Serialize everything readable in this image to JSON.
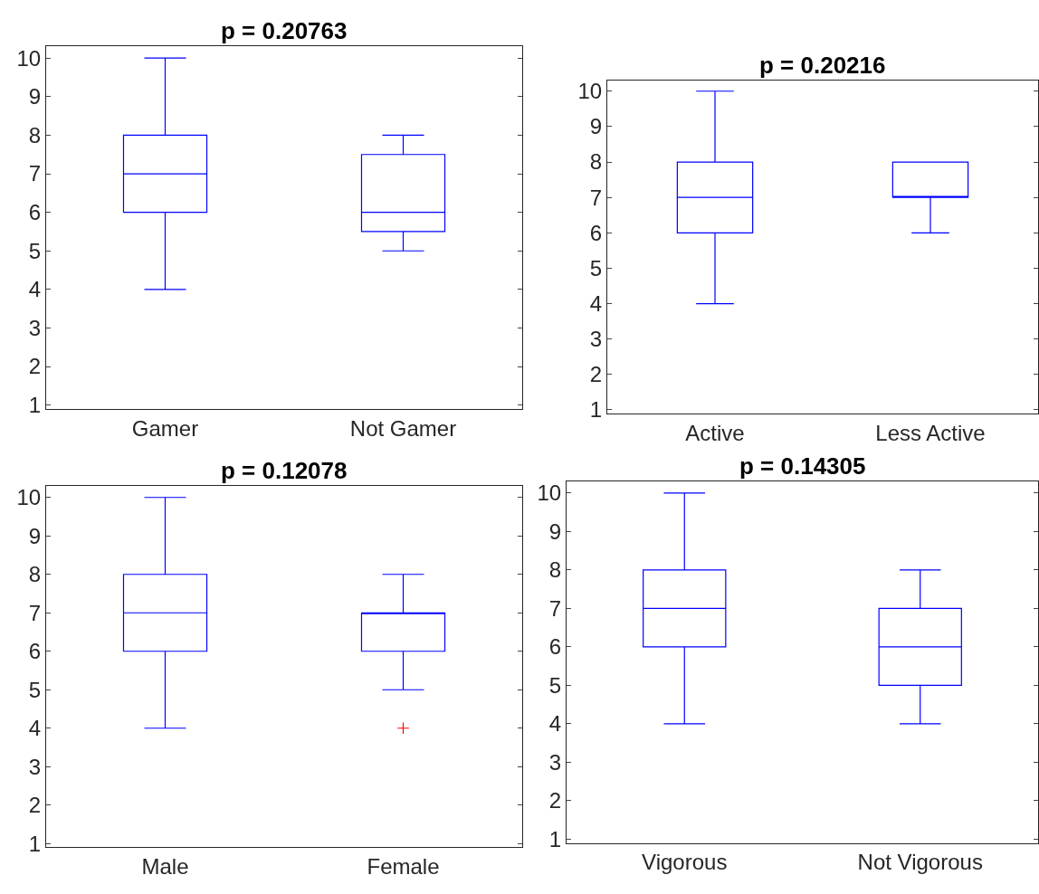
{
  "chart_data": [
    {
      "type": "box",
      "title": "p = 0.20763",
      "categories": [
        "Gamer",
        "Not Gamer"
      ],
      "ylim": [
        0.9,
        10.3
      ],
      "yticks": [
        1,
        2,
        3,
        4,
        5,
        6,
        7,
        8,
        9,
        10
      ],
      "series": [
        {
          "color": "#0000ff",
          "boxes": [
            {
              "low": 4,
              "q1": 6,
              "median": 7,
              "q3": 8,
              "high": 10
            },
            {
              "low": 5,
              "q1": 5.5,
              "median": 6,
              "q3": 7.5,
              "high": 8
            }
          ]
        }
      ]
    },
    {
      "type": "box",
      "title": "p = 0.20216",
      "categories": [
        "Active",
        "Less Active"
      ],
      "ylim": [
        0.9,
        10.3
      ],
      "yticks": [
        1,
        2,
        3,
        4,
        5,
        6,
        7,
        8,
        9,
        10
      ],
      "series": [
        {
          "color": "#0000ff",
          "boxes": [
            {
              "low": 4,
              "q1": 6,
              "median": 7,
              "q3": 8,
              "high": 10
            },
            {
              "low": 6,
              "q1": 7,
              "median": 7,
              "q3": 8,
              "high": 8
            }
          ]
        }
      ]
    },
    {
      "type": "box",
      "title": "p = 0.12078",
      "categories": [
        "Male",
        "Female"
      ],
      "ylim": [
        0.9,
        10.3
      ],
      "yticks": [
        1,
        2,
        3,
        4,
        5,
        6,
        7,
        8,
        9,
        10
      ],
      "series": [
        {
          "color": "#0000ff",
          "boxes": [
            {
              "low": 4,
              "q1": 6,
              "median": 7,
              "q3": 8,
              "high": 10
            },
            {
              "low": 5,
              "q1": 6,
              "median": 7,
              "q3": 7,
              "high": 8,
              "outliers": [
                4
              ]
            }
          ]
        }
      ]
    },
    {
      "type": "box",
      "title": "p = 0.14305",
      "categories": [
        "Vigorous",
        "Not Vigorous"
      ],
      "ylim": [
        0.9,
        10.3
      ],
      "yticks": [
        1,
        2,
        3,
        4,
        5,
        6,
        7,
        8,
        9,
        10
      ],
      "series": [
        {
          "color": "#0000ff",
          "boxes": [
            {
              "low": 4,
              "q1": 6,
              "median": 7,
              "q3": 8,
              "high": 10
            },
            {
              "low": 4,
              "q1": 5,
              "median": 6,
              "q3": 7,
              "high": 8
            }
          ]
        }
      ]
    }
  ]
}
